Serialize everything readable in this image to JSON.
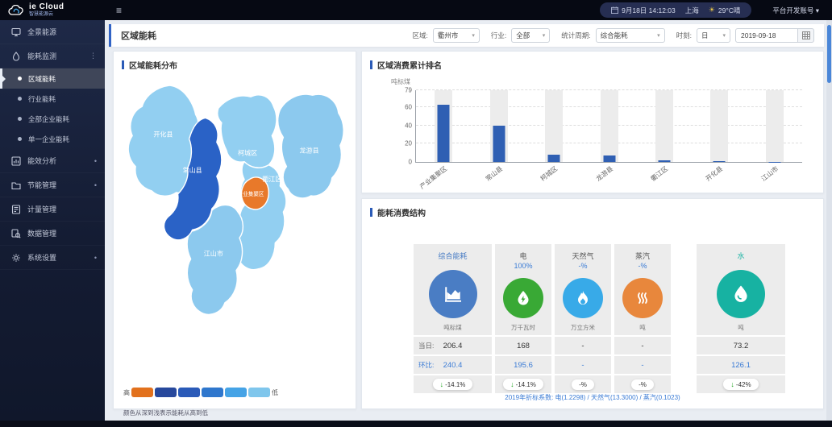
{
  "topbar": {
    "brand": "ie Cloud",
    "brand_sub": "智慧能源云",
    "menu_glyph": "≡",
    "date": "9月18日 14:12:03",
    "city": "上海",
    "weather": "29°C晴",
    "account": "平台开发账号 ▾"
  },
  "sidebar": {
    "items": [
      {
        "label": "全景能源",
        "icon": "monitor-icon"
      },
      {
        "label": "能耗监测",
        "icon": "drop-icon",
        "adorn": "⋮"
      },
      {
        "label": "区域能耗",
        "selected": true
      },
      {
        "label": "行业能耗"
      },
      {
        "label": "全部企业能耗"
      },
      {
        "label": "单一企业能耗"
      },
      {
        "label": "能效分析",
        "icon": "chart-icon",
        "adorn": "•"
      },
      {
        "label": "节能管理",
        "icon": "folder-icon",
        "adorn": "•"
      },
      {
        "label": "计量管理",
        "icon": "meter-icon"
      },
      {
        "label": "数据管理",
        "icon": "data-search-icon"
      },
      {
        "label": "系统设置",
        "icon": "gear-icon",
        "adorn": "•"
      }
    ]
  },
  "page": {
    "title": "区域能耗"
  },
  "filters": {
    "region_label": "区域:",
    "region_value": "衢州市",
    "industry_label": "行业:",
    "industry_value": "全部",
    "period_label": "统计周期:",
    "period_value": "综合能耗",
    "time_label": "时刻:",
    "time_value": "日",
    "date_value": "2019-09-18"
  },
  "map_panel": {
    "title": "区域能耗分布",
    "legend_high": "高",
    "legend_low": "低",
    "legend_colors": [
      "#e2711d",
      "#27489c",
      "#2a5ab8",
      "#2f77cd",
      "#45a3e6",
      "#7fc6ec"
    ],
    "caption": "颜色从深到浅表示能耗从高到低",
    "regions": [
      {
        "name": "开化县",
        "color": "#92cff1"
      },
      {
        "name": "常山县",
        "color": "#2a62c6"
      },
      {
        "name": "柯城区",
        "color": "#92cff1"
      },
      {
        "name": "龙游县",
        "color": "#8cc9ee"
      },
      {
        "name": "衢江区",
        "color": "#92cff1"
      },
      {
        "name": "产业集聚区",
        "color": "#e8792a"
      },
      {
        "name": "江山市",
        "color": "#8cc9ee"
      }
    ]
  },
  "chart_data": {
    "type": "bar",
    "title": "区域消费累计排名",
    "ylabel": "吨标煤",
    "categories": [
      "产业集聚区",
      "常山县",
      "柯城区",
      "龙游县",
      "衢江区",
      "开化县",
      "江山市"
    ],
    "values": [
      63,
      40,
      8,
      7,
      2,
      0.8,
      0.3
    ],
    "ylim": [
      0,
      79
    ],
    "yticks": [
      0,
      20,
      40,
      60,
      79
    ],
    "bar_color": "#2f5fb3",
    "track_color": "#ececec",
    "grid": "dashed",
    "legend_position": "none"
  },
  "structure_panel": {
    "title": "能耗消费结构",
    "daily_label": "当日:",
    "ratio_label": "环比:",
    "cards": [
      {
        "name": "综合能耗",
        "percent": "",
        "unit": "吨标煤",
        "daily": "206.4",
        "ratio": "240.4",
        "change": "-14.1%",
        "trend": "down",
        "color": "#4a7dc4"
      },
      {
        "name": "电",
        "percent": "100%",
        "unit": "万千瓦时",
        "daily": "168",
        "ratio": "195.6",
        "change": "-14.1%",
        "trend": "down",
        "color": "#39a935"
      },
      {
        "name": "天然气",
        "percent": "-%",
        "unit": "万立方米",
        "daily": "-",
        "ratio": "-",
        "change": "-%",
        "trend": "none",
        "color": "#38aae8"
      },
      {
        "name": "蒸汽",
        "percent": "-%",
        "unit": "吨",
        "daily": "-",
        "ratio": "-",
        "change": "-%",
        "trend": "none",
        "color": "#e8873c"
      },
      {
        "name": "水",
        "percent": "",
        "unit": "吨",
        "daily": "73.2",
        "ratio": "126.1",
        "change": "-42%",
        "trend": "down",
        "color": "#17b2a2"
      }
    ],
    "footnote": "2019年折标系数: 电(1.2298) / 天然气(13.3000) / 蒸汽(0.1023)"
  }
}
